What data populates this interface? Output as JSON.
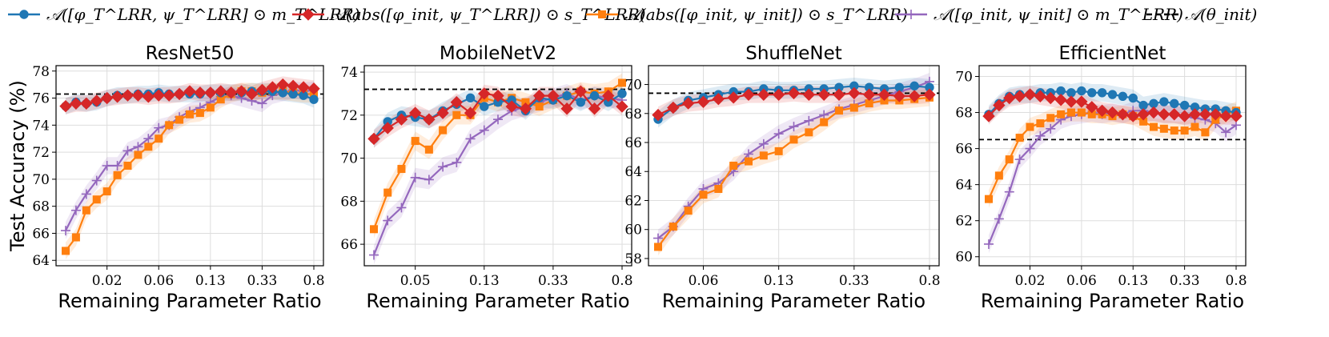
{
  "legend": [
    {
      "key": "s1",
      "label": "𝒜([φ_T^LRR, ψ_T^LRR] ⊙ m_T^LRR)",
      "color": "#1f77b4",
      "marker": "circle"
    },
    {
      "key": "s2",
      "label": "𝒜(abs([φ_init, ψ_T^LRR]) ⊙ s_T^LRR)",
      "color": "#d62728",
      "marker": "diamond"
    },
    {
      "key": "s3",
      "label": "𝒜(abs([φ_init, ψ_init]) ⊙ s_T^LRR)",
      "color": "#ff7f0e",
      "marker": "square"
    },
    {
      "key": "s4",
      "label": "𝒜([φ_init, ψ_init] ⊙ m_T^LRR)",
      "color": "#9467bd",
      "marker": "x"
    },
    {
      "key": "base",
      "label": "𝒜(θ_init)",
      "color": "#000000",
      "marker": "dashed"
    }
  ],
  "chart_data": [
    {
      "type": "line",
      "title": "ResNet50",
      "xlabel": "Remaining Parameter Ratio",
      "ylabel": "Test Accuracy (%)",
      "x_ticks": [
        "0.02",
        "0.06",
        "0.13",
        "0.33",
        "0.8"
      ],
      "x_tick_index": [
        4,
        9,
        14,
        19,
        24
      ],
      "ylim": [
        63.6,
        78.4
      ],
      "yticks": [
        64,
        66,
        68,
        70,
        72,
        74,
        76,
        78
      ],
      "baseline": 76.3,
      "series": [
        {
          "name": "s1",
          "values": [
            75.4,
            75.7,
            75.6,
            75.7,
            76.0,
            76.2,
            76.2,
            76.3,
            76.3,
            76.4,
            76.3,
            76.3,
            76.3,
            76.3,
            76.4,
            76.4,
            76.4,
            76.4,
            76.5,
            76.5,
            76.5,
            76.4,
            76.3,
            76.2,
            75.9
          ]
        },
        {
          "name": "s2",
          "values": [
            75.4,
            75.6,
            75.6,
            75.8,
            76.0,
            76.1,
            76.2,
            76.2,
            76.1,
            76.2,
            76.2,
            76.3,
            76.5,
            76.4,
            76.4,
            76.5,
            76.4,
            76.5,
            76.3,
            76.6,
            76.8,
            77.0,
            76.9,
            76.8,
            76.7
          ]
        },
        {
          "name": "s3",
          "values": [
            64.7,
            65.7,
            67.7,
            68.5,
            69.1,
            70.3,
            71.0,
            71.8,
            72.4,
            73.0,
            74.0,
            74.4,
            74.8,
            74.9,
            75.3,
            75.9,
            76.3,
            76.5,
            76.5,
            76.4,
            76.5,
            76.5,
            76.4,
            76.3,
            76.3
          ]
        },
        {
          "name": "s4",
          "values": [
            66.2,
            67.7,
            68.9,
            69.9,
            71.0,
            71.0,
            72.1,
            72.4,
            73.0,
            73.8,
            74.0,
            74.6,
            75.0,
            75.3,
            75.7,
            76.1,
            76.2,
            76.0,
            75.8,
            75.6,
            76.2,
            76.4,
            76.6,
            76.5,
            76.6
          ]
        }
      ]
    },
    {
      "type": "line",
      "title": "MobileNetV2",
      "xlabel": "Remaining Parameter Ratio",
      "ylabel": "",
      "x_ticks": [
        "0.05",
        "0.13",
        "0.33",
        "0.8"
      ],
      "x_tick_index": [
        3,
        8,
        13,
        18
      ],
      "ylim": [
        65.0,
        74.3
      ],
      "yticks": [
        66,
        68,
        70,
        72,
        74
      ],
      "baseline": 73.2,
      "series": [
        {
          "name": "s1",
          "values": [
            70.9,
            71.7,
            72.0,
            71.9,
            71.8,
            72.2,
            72.5,
            72.8,
            72.4,
            72.6,
            72.7,
            72.2,
            72.8,
            72.7,
            72.9,
            72.6,
            72.9,
            72.6,
            73.0
          ]
        },
        {
          "name": "s2",
          "values": [
            70.9,
            71.4,
            71.8,
            72.1,
            71.8,
            72.1,
            72.6,
            72.1,
            73.0,
            72.9,
            72.4,
            72.3,
            72.9,
            72.9,
            72.3,
            73.1,
            72.3,
            72.9,
            72.4
          ]
        },
        {
          "name": "s3",
          "values": [
            66.7,
            68.4,
            69.5,
            70.8,
            70.4,
            71.3,
            72.0,
            72.0,
            72.8,
            72.6,
            72.8,
            72.6,
            72.4,
            72.7,
            72.9,
            73.1,
            73.0,
            73.1,
            73.5
          ]
        },
        {
          "name": "s4",
          "values": [
            65.5,
            67.1,
            67.7,
            69.1,
            69.0,
            69.6,
            69.8,
            70.9,
            71.3,
            71.8,
            72.2,
            72.4,
            72.6,
            72.8,
            73.0,
            72.7,
            72.9,
            72.8,
            72.7
          ]
        }
      ]
    },
    {
      "type": "line",
      "title": "ShuffleNet",
      "xlabel": "Remaining Parameter Ratio",
      "ylabel": "",
      "x_ticks": [
        "0.06",
        "0.13",
        "0.33",
        "0.8"
      ],
      "x_tick_index": [
        3,
        8,
        13,
        18
      ],
      "ylim": [
        57.5,
        71.3
      ],
      "yticks": [
        58,
        60,
        62,
        64,
        66,
        68,
        70
      ],
      "baseline": 69.4,
      "series": [
        {
          "name": "s1",
          "values": [
            67.6,
            68.4,
            68.9,
            69.1,
            69.3,
            69.5,
            69.5,
            69.7,
            69.6,
            69.6,
            69.7,
            69.7,
            69.8,
            69.9,
            69.8,
            69.7,
            69.8,
            69.9,
            69.8
          ]
        },
        {
          "name": "s2",
          "values": [
            67.9,
            68.4,
            68.7,
            68.8,
            69.0,
            69.1,
            69.3,
            69.3,
            69.3,
            69.4,
            69.3,
            69.3,
            69.3,
            69.4,
            69.3,
            69.3,
            69.2,
            69.2,
            69.3
          ]
        },
        {
          "name": "s3",
          "values": [
            58.8,
            60.2,
            61.3,
            62.4,
            62.8,
            64.4,
            64.7,
            65.1,
            65.4,
            66.2,
            66.7,
            67.4,
            68.2,
            68.4,
            68.7,
            68.9,
            68.9,
            69.0,
            69.1
          ]
        },
        {
          "name": "s4",
          "values": [
            59.4,
            60.2,
            61.6,
            62.8,
            63.2,
            64.0,
            65.2,
            65.9,
            66.6,
            67.1,
            67.5,
            67.9,
            68.3,
            68.6,
            68.9,
            69.2,
            69.5,
            69.8,
            70.2
          ]
        }
      ]
    },
    {
      "type": "line",
      "title": "EfficientNet",
      "xlabel": "Remaining Parameter Ratio",
      "ylabel": "",
      "x_ticks": [
        "0.02",
        "0.06",
        "0.13",
        "0.33",
        "0.8"
      ],
      "x_tick_index": [
        4,
        9,
        14,
        19,
        24
      ],
      "ylim": [
        59.5,
        70.6
      ],
      "yticks": [
        60,
        62,
        64,
        66,
        68,
        70
      ],
      "baseline": 66.5,
      "series": [
        {
          "name": "s1",
          "values": [
            67.9,
            68.5,
            68.9,
            69.0,
            69.0,
            69.1,
            69.1,
            69.2,
            69.1,
            69.2,
            69.1,
            69.1,
            69.0,
            68.9,
            68.8,
            68.4,
            68.5,
            68.6,
            68.5,
            68.4,
            68.3,
            68.2,
            68.2,
            68.1,
            68.0
          ]
        },
        {
          "name": "s2",
          "values": [
            67.8,
            68.4,
            68.8,
            68.9,
            69.0,
            68.9,
            68.8,
            68.7,
            68.6,
            68.6,
            68.3,
            68.1,
            68.0,
            67.9,
            67.8,
            67.9,
            68.0,
            67.9,
            67.9,
            67.8,
            67.9,
            67.9,
            67.9,
            67.8,
            67.8
          ]
        },
        {
          "name": "s3",
          "values": [
            63.2,
            64.5,
            65.4,
            66.6,
            67.2,
            67.4,
            67.7,
            67.9,
            68.0,
            68.0,
            67.9,
            67.9,
            67.8,
            67.9,
            67.8,
            67.5,
            67.2,
            67.1,
            67.0,
            67.0,
            67.2,
            66.9,
            67.6,
            67.9,
            68.1
          ]
        },
        {
          "name": "s4",
          "values": [
            60.7,
            62.1,
            63.6,
            65.4,
            66.0,
            66.7,
            67.1,
            67.6,
            67.8,
            67.9,
            68.0,
            67.9,
            68.0,
            67.9,
            68.1,
            68.1,
            68.0,
            67.9,
            67.9,
            67.8,
            67.7,
            67.6,
            67.4,
            66.9,
            67.3
          ]
        }
      ]
    }
  ]
}
